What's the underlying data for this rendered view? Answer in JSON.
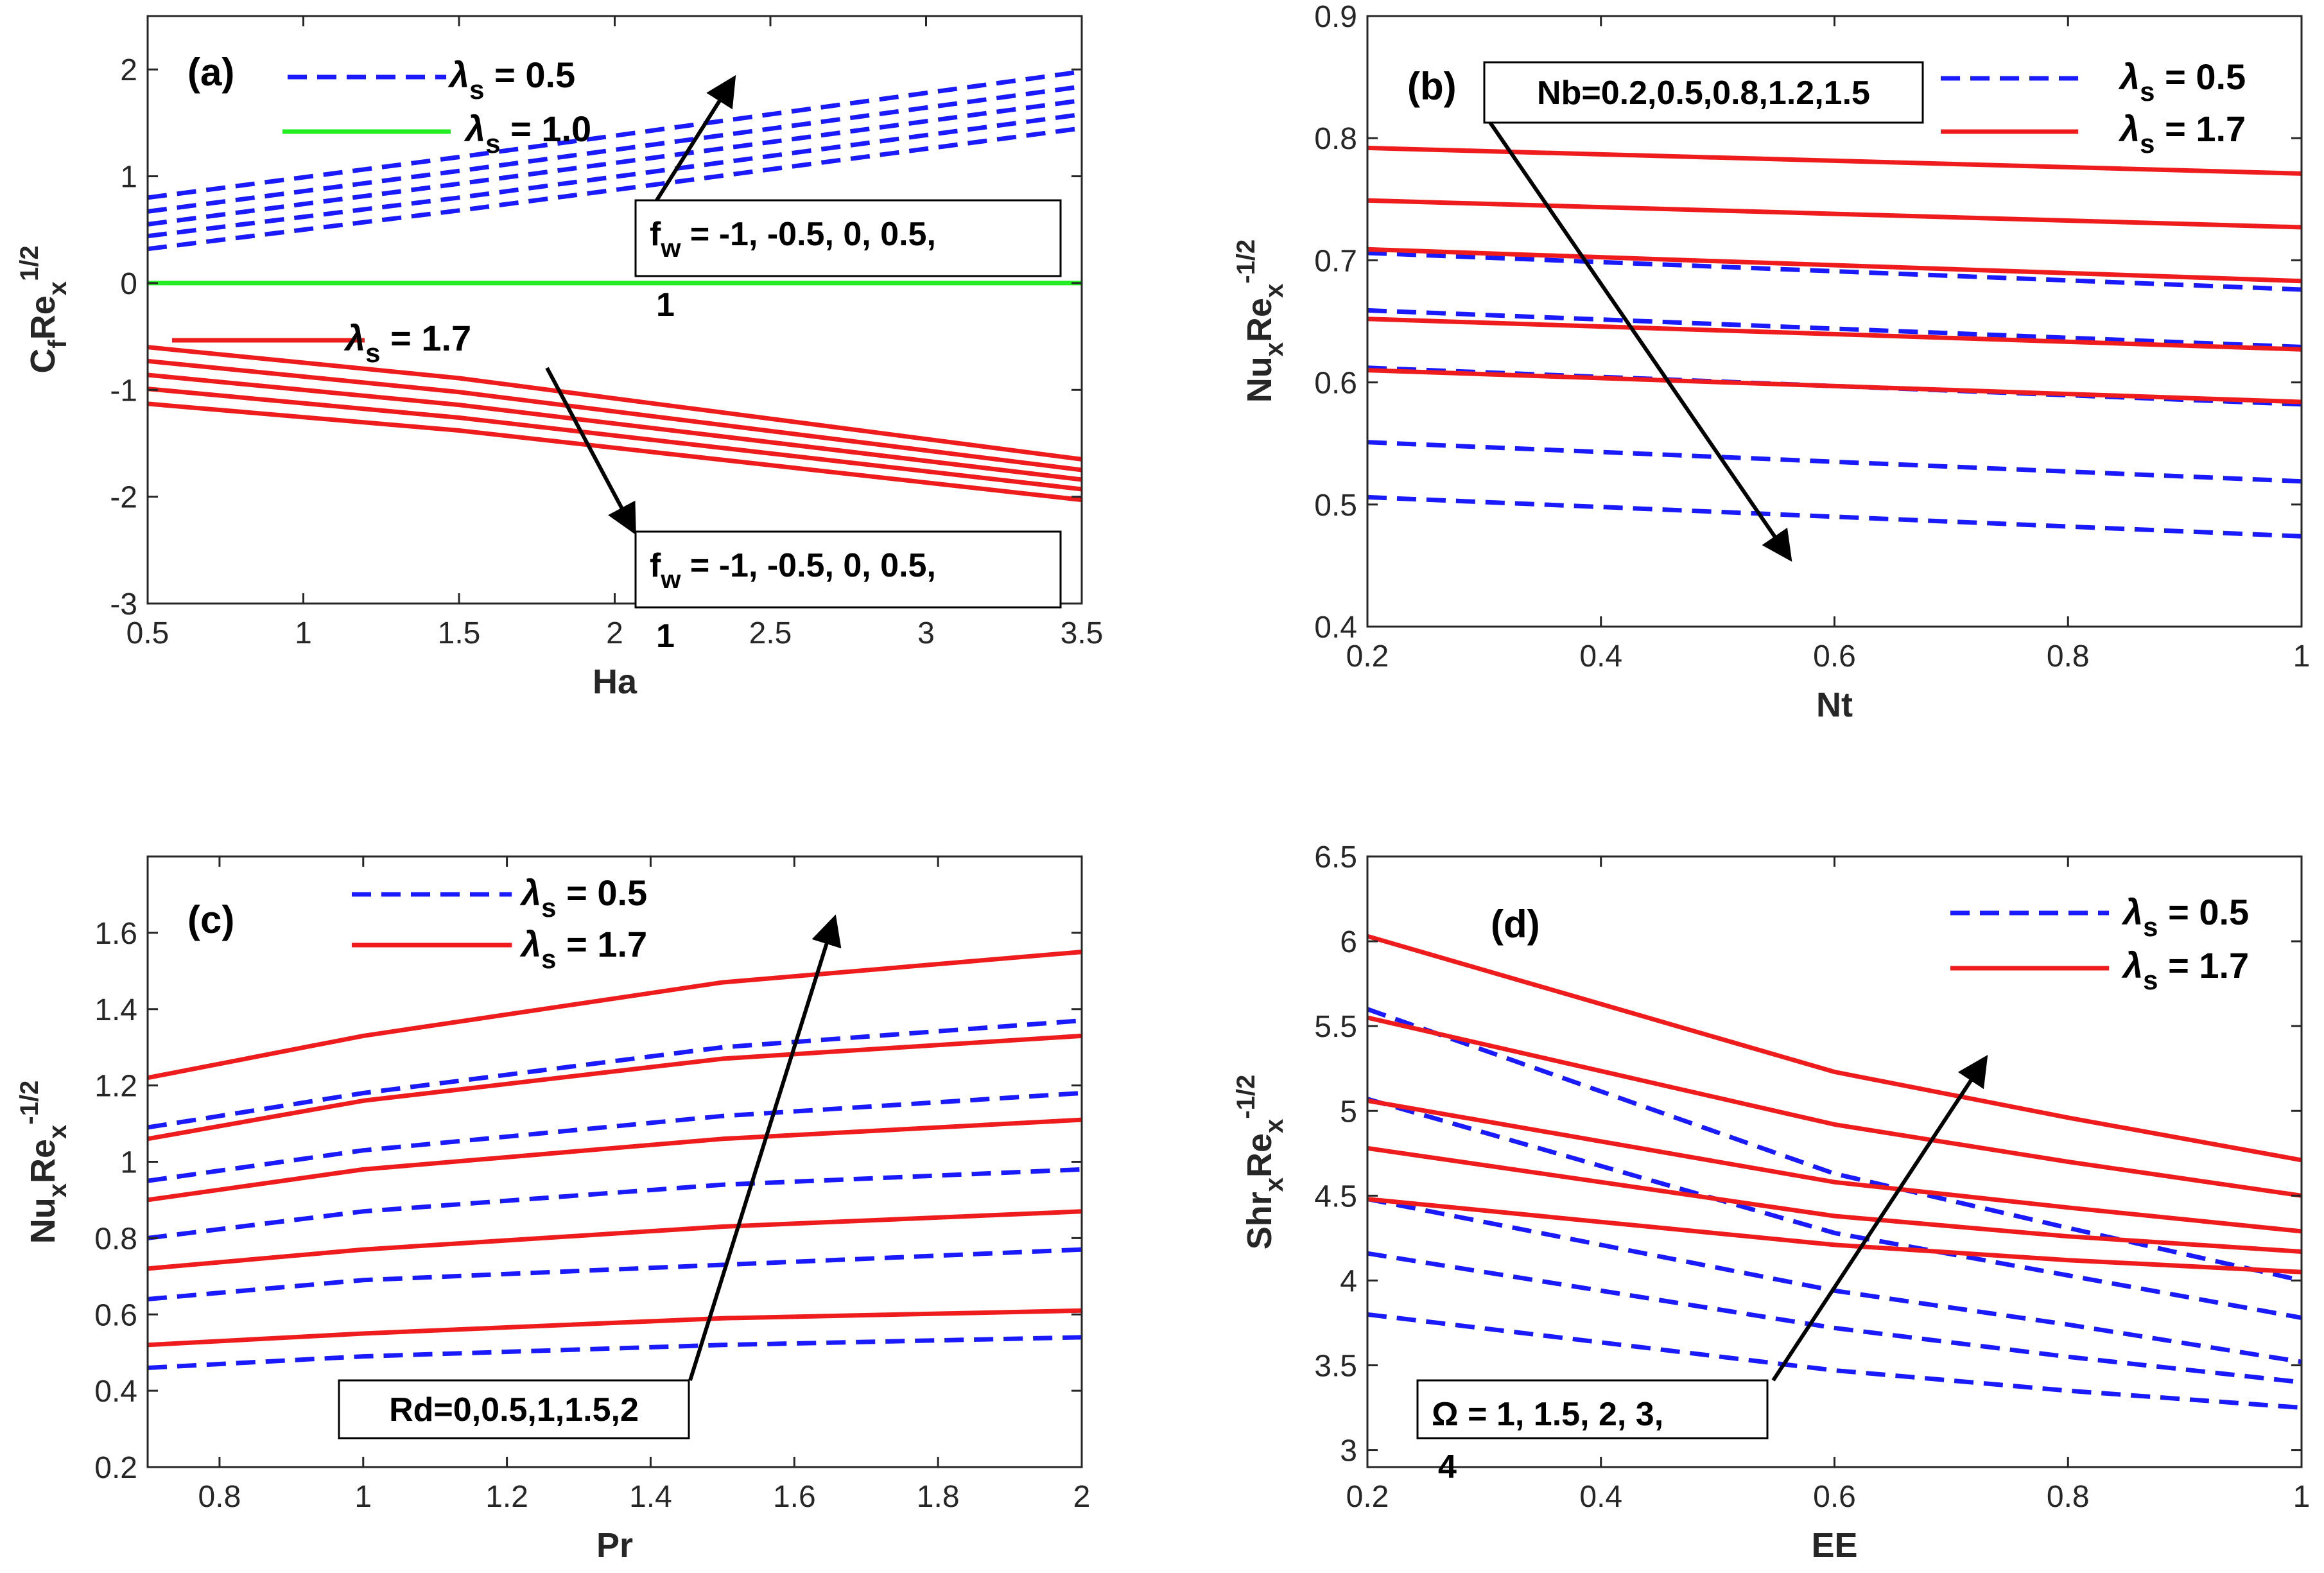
{
  "colors": {
    "blue": "#1a1aff",
    "red": "#ee1c1c",
    "green": "#22ee22",
    "axis": "#262626"
  },
  "chart_data": [
    {
      "type": "line",
      "panel": "(a)",
      "xlabel": "Ha",
      "ylabel": {
        "main": "C",
        "sub1": "f",
        "main2": "Re",
        "sub2": "x",
        "sup": "1/2"
      },
      "xlim": [
        0.5,
        3.5
      ],
      "ylim": [
        -3,
        2.5
      ],
      "xticks": [
        0.5,
        1,
        1.5,
        2,
        2.5,
        3,
        3.5
      ],
      "xtick_labels": [
        "0.5",
        "1",
        "1.5",
        "2",
        "2.5",
        "3",
        "3.5"
      ],
      "yticks": [
        -3,
        -2,
        -1,
        0,
        1,
        2
      ],
      "ytick_labels": [
        "-3",
        "-2",
        "-1",
        "0",
        "1",
        "2"
      ],
      "legend": [
        {
          "text": "λ",
          "sub": "s",
          "rest": " = 0.5",
          "style": "dashed",
          "color": "blue"
        },
        {
          "text": "λ",
          "sub": "s",
          "rest": " = 1.0",
          "style": "solid",
          "color": "green"
        },
        {
          "text": "λ",
          "sub": "s",
          "rest": " = 1.7",
          "style": "solid",
          "color": "red"
        }
      ],
      "annotations": [
        {
          "line1": "f",
          "sub": "w",
          "rest": " = -1, -0.5, 0, 0.5,",
          "line2": "1"
        },
        {
          "line1": "f",
          "sub": "w",
          "rest": " = -1, -0.5, 0, 0.5,",
          "line2": "1"
        }
      ],
      "series": [
        {
          "name": "λs=0.5 fw=-1",
          "style": "dashed",
          "color": "blue",
          "x": [
            0.5,
            1.5,
            3.5
          ],
          "y": [
            0.32,
            0.68,
            1.45
          ]
        },
        {
          "name": "λs=0.5 fw=-0.5",
          "style": "dashed",
          "color": "blue",
          "x": [
            0.5,
            1.5,
            3.5
          ],
          "y": [
            0.44,
            0.8,
            1.58
          ]
        },
        {
          "name": "λs=0.5 fw=0",
          "style": "dashed",
          "color": "blue",
          "x": [
            0.5,
            1.5,
            3.5
          ],
          "y": [
            0.55,
            0.93,
            1.71
          ]
        },
        {
          "name": "λs=0.5 fw=0.5",
          "style": "dashed",
          "color": "blue",
          "x": [
            0.5,
            1.5,
            3.5
          ],
          "y": [
            0.67,
            1.05,
            1.84
          ]
        },
        {
          "name": "λs=0.5 fw=1",
          "style": "dashed",
          "color": "blue",
          "x": [
            0.5,
            1.5,
            3.5
          ],
          "y": [
            0.8,
            1.18,
            1.98
          ]
        },
        {
          "name": "λs=1.0",
          "style": "solid",
          "color": "green",
          "x": [
            0.5,
            3.5
          ],
          "y": [
            0,
            0
          ]
        },
        {
          "name": "λs=1.7 fw=-1",
          "style": "solid",
          "color": "red",
          "x": [
            0.5,
            1.5,
            3.5
          ],
          "y": [
            -0.6,
            -0.89,
            -1.65
          ]
        },
        {
          "name": "λs=1.7 fw=-0.5",
          "style": "solid",
          "color": "red",
          "x": [
            0.5,
            1.5,
            3.5
          ],
          "y": [
            -0.73,
            -1.02,
            -1.75
          ]
        },
        {
          "name": "λs=1.7 fw=0",
          "style": "solid",
          "color": "red",
          "x": [
            0.5,
            1.5,
            3.5
          ],
          "y": [
            -0.86,
            -1.14,
            -1.84
          ]
        },
        {
          "name": "λs=1.7 fw=0.5",
          "style": "solid",
          "color": "red",
          "x": [
            0.5,
            1.5,
            3.5
          ],
          "y": [
            -0.99,
            -1.26,
            -1.93
          ]
        },
        {
          "name": "λs=1.7 fw=1",
          "style": "solid",
          "color": "red",
          "x": [
            0.5,
            1.5,
            3.5
          ],
          "y": [
            -1.13,
            -1.38,
            -2.03
          ]
        }
      ]
    },
    {
      "type": "line",
      "panel": "(b)",
      "xlabel": "Nt",
      "ylabel": {
        "main": "Nu",
        "sub1": "x",
        "main2": "Re",
        "sub2": "x",
        "sup": "-1/2"
      },
      "xlim": [
        0.2,
        1
      ],
      "ylim": [
        0.4,
        0.9
      ],
      "xticks": [
        0.2,
        0.4,
        0.6,
        0.8,
        1
      ],
      "xtick_labels": [
        "0.2",
        "0.4",
        "0.6",
        "0.8",
        "1"
      ],
      "yticks": [
        0.4,
        0.5,
        0.6,
        0.7,
        0.8,
        0.9
      ],
      "ytick_labels": [
        "0.4",
        "0.5",
        "0.6",
        "0.7",
        "0.8",
        "0.9"
      ],
      "legend": [
        {
          "text": "λ",
          "sub": "s",
          "rest": " = 0.5",
          "style": "dashed",
          "color": "blue"
        },
        {
          "text": "λ",
          "sub": "s",
          "rest": " = 1.7",
          "style": "solid",
          "color": "red"
        }
      ],
      "annotations": [
        {
          "text": "Nb=0.2,0.5,0.8,1.2,1.5"
        }
      ],
      "series": [
        {
          "name": "λs=0.5 Nb=0.2",
          "style": "dashed",
          "color": "blue",
          "x": [
            0.2,
            1
          ],
          "y": [
            0.706,
            0.676
          ]
        },
        {
          "name": "λs=0.5 Nb=0.5",
          "style": "dashed",
          "color": "blue",
          "x": [
            0.2,
            1
          ],
          "y": [
            0.659,
            0.629
          ]
        },
        {
          "name": "λs=0.5 Nb=0.8",
          "style": "dashed",
          "color": "blue",
          "x": [
            0.2,
            1
          ],
          "y": [
            0.612,
            0.582
          ]
        },
        {
          "name": "λs=0.5 Nb=1.2",
          "style": "dashed",
          "color": "blue",
          "x": [
            0.2,
            1
          ],
          "y": [
            0.551,
            0.519
          ]
        },
        {
          "name": "λs=0.5 Nb=1.5",
          "style": "dashed",
          "color": "blue",
          "x": [
            0.2,
            1
          ],
          "y": [
            0.506,
            0.474
          ]
        },
        {
          "name": "λs=1.7 Nb=0.2",
          "style": "solid",
          "color": "red",
          "x": [
            0.2,
            1
          ],
          "y": [
            0.792,
            0.771
          ]
        },
        {
          "name": "λs=1.7 Nb=0.5",
          "style": "solid",
          "color": "red",
          "x": [
            0.2,
            1
          ],
          "y": [
            0.749,
            0.727
          ]
        },
        {
          "name": "λs=1.7 Nb=0.8",
          "style": "solid",
          "color": "red",
          "x": [
            0.2,
            1
          ],
          "y": [
            0.709,
            0.683
          ]
        },
        {
          "name": "λs=1.7 Nb=1.2",
          "style": "solid",
          "color": "red",
          "x": [
            0.2,
            1
          ],
          "y": [
            0.652,
            0.627
          ]
        },
        {
          "name": "λs=1.7 Nb=1.5",
          "style": "solid",
          "color": "red",
          "x": [
            0.2,
            1
          ],
          "y": [
            0.61,
            0.584
          ]
        }
      ]
    },
    {
      "type": "line",
      "panel": "(c)",
      "xlabel": "Pr",
      "ylabel": {
        "main": "Nu",
        "sub1": "x",
        "main2": "Re",
        "sub2": "x",
        "sup": "-1/2"
      },
      "xlim": [
        0.7,
        2
      ],
      "ylim": [
        0.2,
        1.8
      ],
      "xticks": [
        0.8,
        1,
        1.2,
        1.4,
        1.6,
        1.8,
        2
      ],
      "xtick_labels": [
        "0.8",
        "1",
        "1.2",
        "1.4",
        "1.6",
        "1.8",
        "2"
      ],
      "yticks": [
        0.2,
        0.4,
        0.6,
        0.8,
        1,
        1.2,
        1.4,
        1.6
      ],
      "ytick_labels": [
        "0.2",
        "0.4",
        "0.6",
        "0.8",
        "1",
        "1.2",
        "1.4",
        "1.6"
      ],
      "legend": [
        {
          "text": "λ",
          "sub": "s",
          "rest": " = 0.5",
          "style": "dashed",
          "color": "blue"
        },
        {
          "text": "λ",
          "sub": "s",
          "rest": " = 1.7",
          "style": "solid",
          "color": "red"
        }
      ],
      "annotations": [
        {
          "text": "Rd=0,0.5,1,1.5,2"
        }
      ],
      "series": [
        {
          "name": "λs=0.5 Rd=0",
          "style": "dashed",
          "color": "blue",
          "x": [
            0.7,
            1,
            1.5,
            2
          ],
          "y": [
            0.46,
            0.49,
            0.52,
            0.54
          ]
        },
        {
          "name": "λs=0.5 Rd=0.5",
          "style": "dashed",
          "color": "blue",
          "x": [
            0.7,
            1,
            1.5,
            2
          ],
          "y": [
            0.64,
            0.69,
            0.73,
            0.77
          ]
        },
        {
          "name": "λs=0.5 Rd=1",
          "style": "dashed",
          "color": "blue",
          "x": [
            0.7,
            1,
            1.5,
            2
          ],
          "y": [
            0.8,
            0.87,
            0.94,
            0.98
          ]
        },
        {
          "name": "λs=0.5 Rd=1.5",
          "style": "dashed",
          "color": "blue",
          "x": [
            0.7,
            1,
            1.5,
            2
          ],
          "y": [
            0.95,
            1.03,
            1.12,
            1.18
          ]
        },
        {
          "name": "λs=0.5 Rd=2",
          "style": "dashed",
          "color": "blue",
          "x": [
            0.7,
            1,
            1.5,
            2
          ],
          "y": [
            1.09,
            1.18,
            1.3,
            1.37
          ]
        },
        {
          "name": "λs=1.7 Rd=0",
          "style": "solid",
          "color": "red",
          "x": [
            0.7,
            1,
            1.5,
            2
          ],
          "y": [
            0.52,
            0.55,
            0.59,
            0.61
          ]
        },
        {
          "name": "λs=1.7 Rd=0.5",
          "style": "solid",
          "color": "red",
          "x": [
            0.7,
            1,
            1.5,
            2
          ],
          "y": [
            0.72,
            0.77,
            0.83,
            0.87
          ]
        },
        {
          "name": "λs=1.7 Rd=1",
          "style": "solid",
          "color": "red",
          "x": [
            0.7,
            1,
            1.5,
            2
          ],
          "y": [
            0.9,
            0.98,
            1.06,
            1.11
          ]
        },
        {
          "name": "λs=1.7 Rd=1.5",
          "style": "solid",
          "color": "red",
          "x": [
            0.7,
            1,
            1.5,
            2
          ],
          "y": [
            1.06,
            1.16,
            1.27,
            1.33
          ]
        },
        {
          "name": "λs=1.7 Rd=2",
          "style": "solid",
          "color": "red",
          "x": [
            0.7,
            1,
            1.5,
            2
          ],
          "y": [
            1.22,
            1.33,
            1.47,
            1.55
          ]
        }
      ]
    },
    {
      "type": "line",
      "panel": "(d)",
      "xlabel": "EE",
      "ylabel": {
        "main": "Shr",
        "sub1": "x",
        "main2": "Re",
        "sub2": "x",
        "sup": "-1/2"
      },
      "xlim": [
        0.2,
        1
      ],
      "ylim": [
        2.9,
        6.5
      ],
      "xticks": [
        0.2,
        0.4,
        0.6,
        0.8,
        1
      ],
      "xtick_labels": [
        "0.2",
        "0.4",
        "0.6",
        "0.8",
        "1"
      ],
      "yticks": [
        3,
        3.5,
        4,
        4.5,
        5,
        5.5,
        6,
        6.5
      ],
      "ytick_labels": [
        "3",
        "3.5",
        "4",
        "4.5",
        "5",
        "5.5",
        "6",
        "6.5"
      ],
      "legend": [
        {
          "text": "λ",
          "sub": "s",
          "rest": " = 0.5",
          "style": "dashed",
          "color": "blue"
        },
        {
          "text": "λ",
          "sub": "s",
          "rest": " = 1.7",
          "style": "solid",
          "color": "red"
        }
      ],
      "annotations": [
        {
          "line1": "Ω",
          "rest": " = 1, 1.5, 2, 3,",
          "line2": "4"
        }
      ],
      "series": [
        {
          "name": "λs=0.5 Ω=1",
          "style": "dashed",
          "color": "blue",
          "x": [
            0.2,
            0.6,
            0.8,
            1
          ],
          "y": [
            3.8,
            3.47,
            3.35,
            3.25
          ]
        },
        {
          "name": "λs=0.5 Ω=1.5",
          "style": "dashed",
          "color": "blue",
          "x": [
            0.2,
            0.6,
            0.8,
            1
          ],
          "y": [
            4.16,
            3.72,
            3.55,
            3.4
          ]
        },
        {
          "name": "λs=0.5 Ω=2",
          "style": "dashed",
          "color": "blue",
          "x": [
            0.2,
            0.6,
            0.8,
            1
          ],
          "y": [
            4.48,
            3.94,
            3.74,
            3.52
          ]
        },
        {
          "name": "λs=0.5 Ω=3",
          "style": "dashed",
          "color": "blue",
          "x": [
            0.2,
            0.6,
            0.8,
            1
          ],
          "y": [
            5.07,
            4.28,
            4.03,
            3.78
          ]
        },
        {
          "name": "λs=0.5 Ω=4",
          "style": "dashed",
          "color": "blue",
          "x": [
            0.2,
            0.6,
            0.8,
            1
          ],
          "y": [
            5.6,
            4.63,
            4.31,
            4.0
          ]
        },
        {
          "name": "λs=1.7 Ω=1",
          "style": "solid",
          "color": "red",
          "x": [
            0.2,
            0.6,
            0.8,
            1
          ],
          "y": [
            4.48,
            4.21,
            4.12,
            4.05
          ]
        },
        {
          "name": "λs=1.7 Ω=1.5",
          "style": "solid",
          "color": "red",
          "x": [
            0.2,
            0.6,
            0.8,
            1
          ],
          "y": [
            4.78,
            4.38,
            4.26,
            4.17
          ]
        },
        {
          "name": "λs=1.7 Ω=2",
          "style": "solid",
          "color": "red",
          "x": [
            0.2,
            0.6,
            0.8,
            1
          ],
          "y": [
            5.06,
            4.58,
            4.43,
            4.29
          ]
        },
        {
          "name": "λs=1.7 Ω=3",
          "style": "solid",
          "color": "red",
          "x": [
            0.2,
            0.6,
            0.8,
            1
          ],
          "y": [
            5.55,
            4.92,
            4.7,
            4.5
          ]
        },
        {
          "name": "λs=1.7 Ω=4",
          "style": "solid",
          "color": "red",
          "x": [
            0.2,
            0.6,
            0.8,
            1
          ],
          "y": [
            6.03,
            5.23,
            4.96,
            4.71
          ]
        }
      ]
    }
  ]
}
